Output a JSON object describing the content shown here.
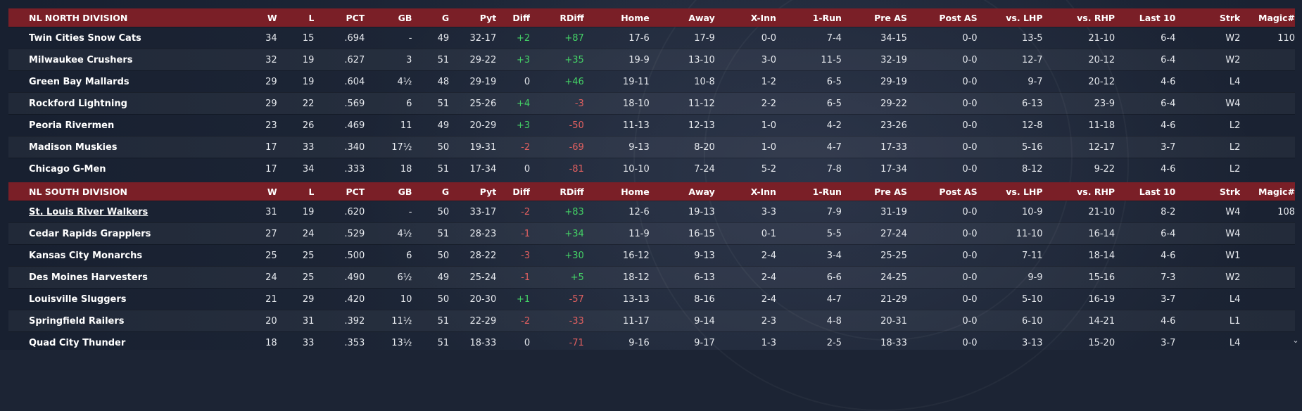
{
  "columns": [
    "W",
    "L",
    "PCT",
    "GB",
    "G",
    "Pyt",
    "Diff",
    "RDiff",
    "Home",
    "Away",
    "X-Inn",
    "1-Run",
    "Pre AS",
    "Post AS",
    "vs. LHP",
    "vs. RHP",
    "Last 10",
    "Strk",
    "Magic#"
  ],
  "divisions": [
    {
      "name": "NL NORTH DIVISION",
      "teams": [
        {
          "team": "Twin Cities Snow Cats",
          "w": "34",
          "l": "15",
          "pct": ".694",
          "gb": "-",
          "g": "49",
          "pyt": "32-17",
          "diff": "+2",
          "rdiff": "+87",
          "home": "17-6",
          "away": "17-9",
          "xinn": "0-0",
          "onerun": "7-4",
          "preas": "34-15",
          "postas": "0-0",
          "lhp": "13-5",
          "rhp": "21-10",
          "last10": "6-4",
          "strk": "W2",
          "magic": "110",
          "diff_sign": "pos",
          "rdiff_sign": "pos"
        },
        {
          "team": "Milwaukee Crushers",
          "w": "32",
          "l": "19",
          "pct": ".627",
          "gb": "3",
          "g": "51",
          "pyt": "29-22",
          "diff": "+3",
          "rdiff": "+35",
          "home": "19-9",
          "away": "13-10",
          "xinn": "3-0",
          "onerun": "11-5",
          "preas": "32-19",
          "postas": "0-0",
          "lhp": "12-7",
          "rhp": "20-12",
          "last10": "6-4",
          "strk": "W2",
          "magic": "",
          "diff_sign": "pos",
          "rdiff_sign": "pos"
        },
        {
          "team": "Green Bay  Mallards",
          "w": "29",
          "l": "19",
          "pct": ".604",
          "gb": "4½",
          "g": "48",
          "pyt": "29-19",
          "diff": "0",
          "rdiff": "+46",
          "home": "19-11",
          "away": "10-8",
          "xinn": "1-2",
          "onerun": "6-5",
          "preas": "29-19",
          "postas": "0-0",
          "lhp": "9-7",
          "rhp": "20-12",
          "last10": "4-6",
          "strk": "L4",
          "magic": "",
          "diff_sign": "zero",
          "rdiff_sign": "pos"
        },
        {
          "team": "Rockford Lightning",
          "w": "29",
          "l": "22",
          "pct": ".569",
          "gb": "6",
          "g": "51",
          "pyt": "25-26",
          "diff": "+4",
          "rdiff": "-3",
          "home": "18-10",
          "away": "11-12",
          "xinn": "2-2",
          "onerun": "6-5",
          "preas": "29-22",
          "postas": "0-0",
          "lhp": "6-13",
          "rhp": "23-9",
          "last10": "6-4",
          "strk": "W4",
          "magic": "",
          "diff_sign": "pos",
          "rdiff_sign": "neg"
        },
        {
          "team": "Peoria Rivermen",
          "w": "23",
          "l": "26",
          "pct": ".469",
          "gb": "11",
          "g": "49",
          "pyt": "20-29",
          "diff": "+3",
          "rdiff": "-50",
          "home": "11-13",
          "away": "12-13",
          "xinn": "1-0",
          "onerun": "4-2",
          "preas": "23-26",
          "postas": "0-0",
          "lhp": "12-8",
          "rhp": "11-18",
          "last10": "4-6",
          "strk": "L2",
          "magic": "",
          "diff_sign": "pos",
          "rdiff_sign": "neg"
        },
        {
          "team": "Madison Muskies",
          "w": "17",
          "l": "33",
          "pct": ".340",
          "gb": "17½",
          "g": "50",
          "pyt": "19-31",
          "diff": "-2",
          "rdiff": "-69",
          "home": "9-13",
          "away": "8-20",
          "xinn": "1-0",
          "onerun": "4-7",
          "preas": "17-33",
          "postas": "0-0",
          "lhp": "5-16",
          "rhp": "12-17",
          "last10": "3-7",
          "strk": "L2",
          "magic": "",
          "diff_sign": "neg",
          "rdiff_sign": "neg"
        },
        {
          "team": "Chicago G-Men",
          "w": "17",
          "l": "34",
          "pct": ".333",
          "gb": "18",
          "g": "51",
          "pyt": "17-34",
          "diff": "0",
          "rdiff": "-81",
          "home": "10-10",
          "away": "7-24",
          "xinn": "5-2",
          "onerun": "7-8",
          "preas": "17-34",
          "postas": "0-0",
          "lhp": "8-12",
          "rhp": "9-22",
          "last10": "4-6",
          "strk": "L2",
          "magic": "",
          "diff_sign": "zero",
          "rdiff_sign": "neg"
        }
      ]
    },
    {
      "name": "NL SOUTH DIVISION",
      "teams": [
        {
          "team": "St. Louis River Walkers",
          "w": "31",
          "l": "19",
          "pct": ".620",
          "gb": "-",
          "g": "50",
          "pyt": "33-17",
          "diff": "-2",
          "rdiff": "+83",
          "home": "12-6",
          "away": "19-13",
          "xinn": "3-3",
          "onerun": "7-9",
          "preas": "31-19",
          "postas": "0-0",
          "lhp": "10-9",
          "rhp": "21-10",
          "last10": "8-2",
          "strk": "W4",
          "magic": "108",
          "diff_sign": "neg",
          "rdiff_sign": "pos",
          "link": true
        },
        {
          "team": "Cedar Rapids Grapplers",
          "w": "27",
          "l": "24",
          "pct": ".529",
          "gb": "4½",
          "g": "51",
          "pyt": "28-23",
          "diff": "-1",
          "rdiff": "+34",
          "home": "11-9",
          "away": "16-15",
          "xinn": "0-1",
          "onerun": "5-5",
          "preas": "27-24",
          "postas": "0-0",
          "lhp": "11-10",
          "rhp": "16-14",
          "last10": "6-4",
          "strk": "W4",
          "magic": "",
          "diff_sign": "neg",
          "rdiff_sign": "pos"
        },
        {
          "team": "Kansas City Monarchs",
          "w": "25",
          "l": "25",
          "pct": ".500",
          "gb": "6",
          "g": "50",
          "pyt": "28-22",
          "diff": "-3",
          "rdiff": "+30",
          "home": "16-12",
          "away": "9-13",
          "xinn": "2-4",
          "onerun": "3-4",
          "preas": "25-25",
          "postas": "0-0",
          "lhp": "7-11",
          "rhp": "18-14",
          "last10": "4-6",
          "strk": "W1",
          "magic": "",
          "diff_sign": "neg",
          "rdiff_sign": "pos"
        },
        {
          "team": "Des Moines Harvesters",
          "w": "24",
          "l": "25",
          "pct": ".490",
          "gb": "6½",
          "g": "49",
          "pyt": "25-24",
          "diff": "-1",
          "rdiff": "+5",
          "home": "18-12",
          "away": "6-13",
          "xinn": "2-4",
          "onerun": "6-6",
          "preas": "24-25",
          "postas": "0-0",
          "lhp": "9-9",
          "rhp": "15-16",
          "last10": "7-3",
          "strk": "W2",
          "magic": "",
          "diff_sign": "neg",
          "rdiff_sign": "pos"
        },
        {
          "team": "Louisville Sluggers",
          "w": "21",
          "l": "29",
          "pct": ".420",
          "gb": "10",
          "g": "50",
          "pyt": "20-30",
          "diff": "+1",
          "rdiff": "-57",
          "home": "13-13",
          "away": "8-16",
          "xinn": "2-4",
          "onerun": "4-7",
          "preas": "21-29",
          "postas": "0-0",
          "lhp": "5-10",
          "rhp": "16-19",
          "last10": "3-7",
          "strk": "L4",
          "magic": "",
          "diff_sign": "pos",
          "rdiff_sign": "neg"
        },
        {
          "team": "Springfield Railers",
          "w": "20",
          "l": "31",
          "pct": ".392",
          "gb": "11½",
          "g": "51",
          "pyt": "22-29",
          "diff": "-2",
          "rdiff": "-33",
          "home": "11-17",
          "away": "9-14",
          "xinn": "2-3",
          "onerun": "4-8",
          "preas": "20-31",
          "postas": "0-0",
          "lhp": "6-10",
          "rhp": "14-21",
          "last10": "4-6",
          "strk": "L1",
          "magic": "",
          "diff_sign": "neg",
          "rdiff_sign": "neg"
        },
        {
          "team": "Quad City Thunder",
          "w": "18",
          "l": "33",
          "pct": ".353",
          "gb": "13½",
          "g": "51",
          "pyt": "18-33",
          "diff": "0",
          "rdiff": "-71",
          "home": "9-16",
          "away": "9-17",
          "xinn": "1-3",
          "onerun": "2-5",
          "preas": "18-33",
          "postas": "0-0",
          "lhp": "3-13",
          "rhp": "15-20",
          "last10": "3-7",
          "strk": "L4",
          "magic": "",
          "diff_sign": "zero",
          "rdiff_sign": "neg"
        }
      ]
    }
  ],
  "scroll_icon": "chevron-down-icon",
  "scroll_glyph": "⌄",
  "colors": {
    "header_bg": "#7a1f27",
    "positive": "#44d266",
    "negative": "#e26060",
    "background": "#1c2434"
  }
}
